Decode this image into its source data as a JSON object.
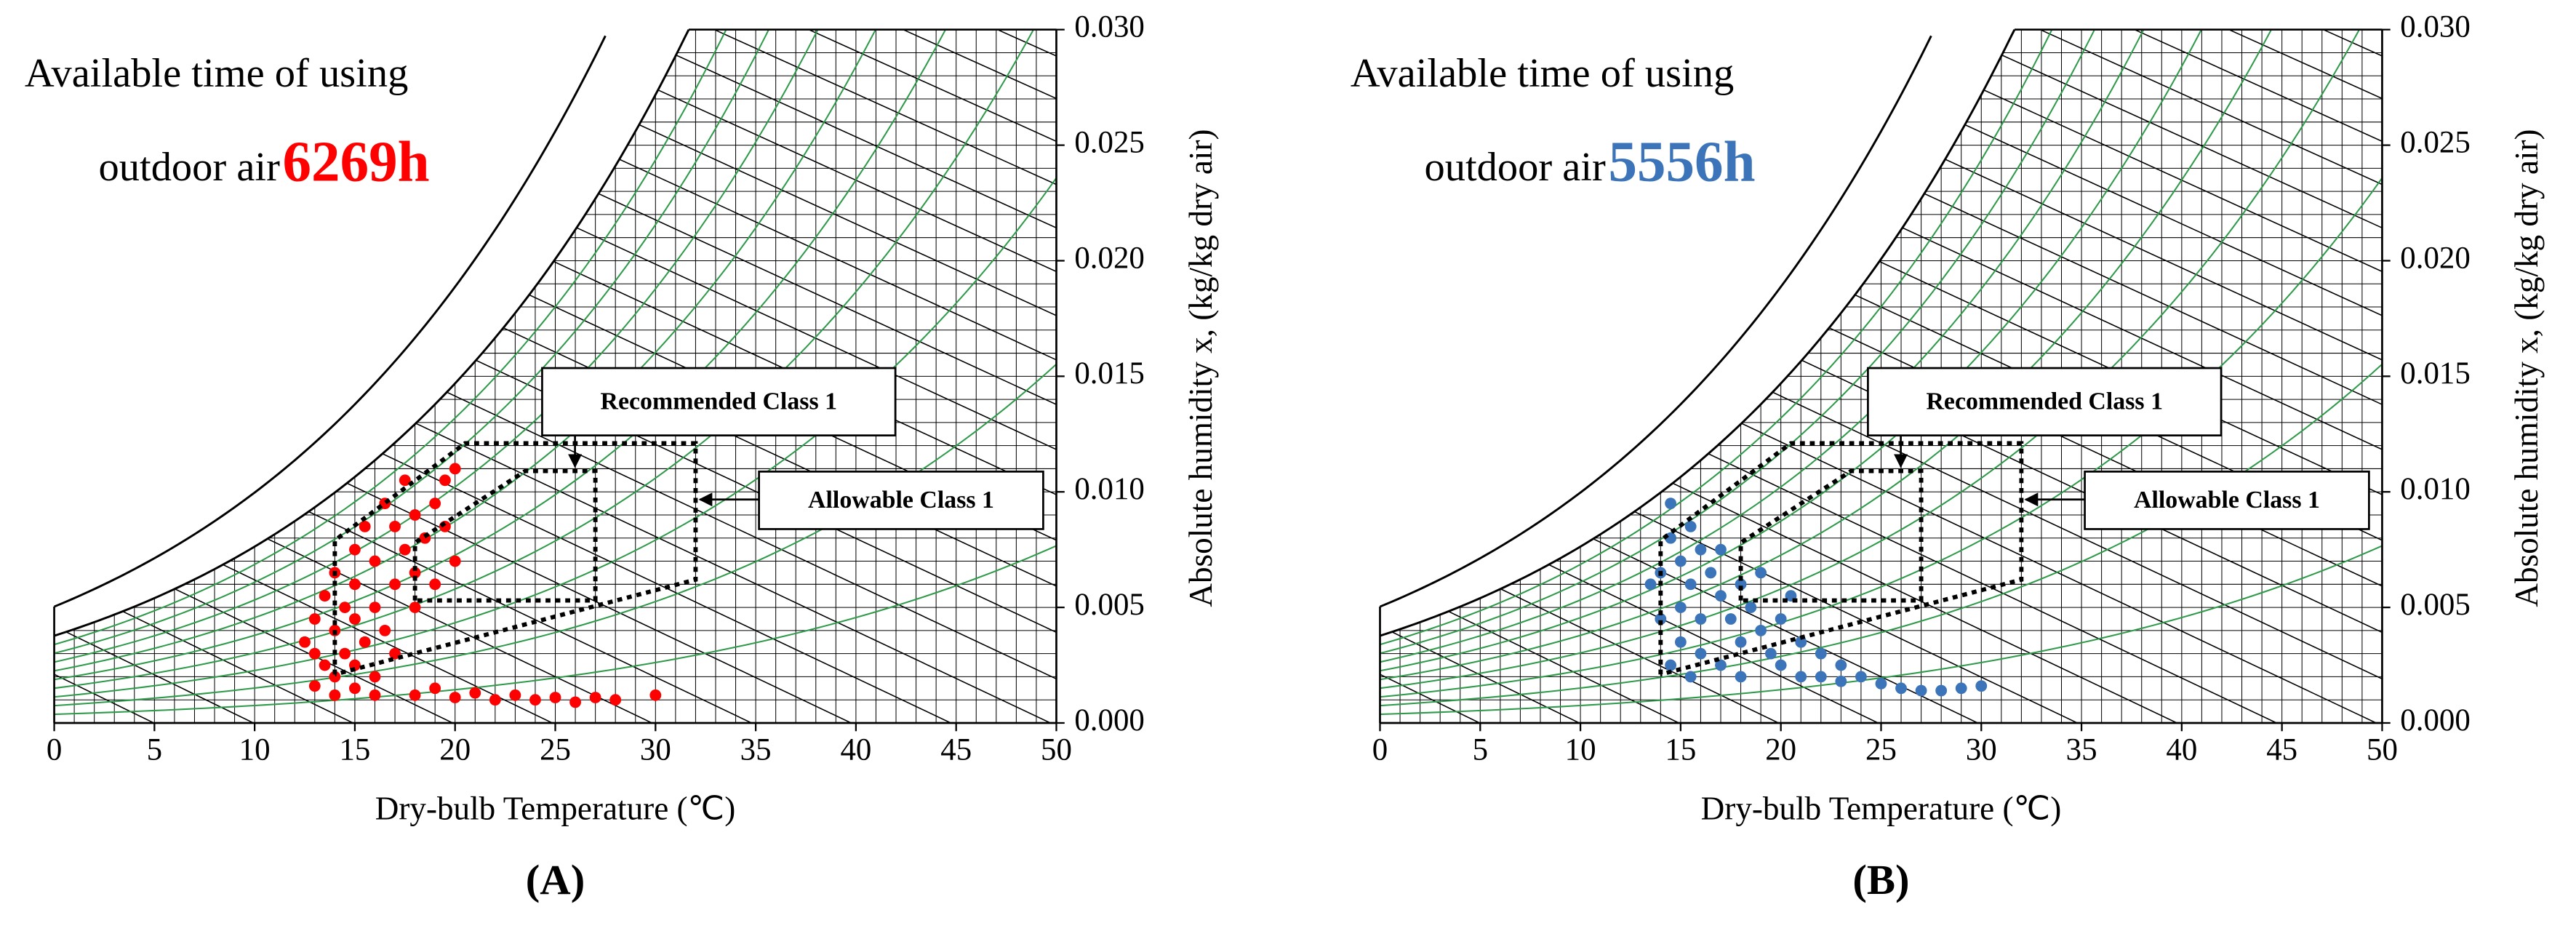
{
  "chart_data": [
    {
      "type": "scatter",
      "panel_label": "(A)",
      "text_lines": [
        "Available time of using",
        "outdoor air"
      ],
      "highlight": "6269h",
      "color": "#ff0000",
      "x_label": "Dry-bulb Temperature (℃)",
      "y_label": "Absolute humidity x, (kg/kg dry air)",
      "xlim": [
        0,
        50
      ],
      "xticks": [
        0,
        5,
        10,
        15,
        20,
        25,
        30,
        35,
        40,
        45,
        50
      ],
      "ylim": [
        0,
        0.03
      ],
      "yticks": [
        {
          "value": 0,
          "label": "0.000"
        },
        {
          "value": 0.005,
          "label": "0.005"
        },
        {
          "value": 0.01,
          "label": "0.010"
        },
        {
          "value": 0.015,
          "label": "0.015"
        },
        {
          "value": 0.02,
          "label": "0.020"
        },
        {
          "value": 0.025,
          "label": "0.025"
        },
        {
          "value": 0.03,
          "label": "0.030"
        }
      ],
      "regions": [
        {
          "label": "Recommended Class 1",
          "x": [
            18,
            18,
            23.5,
            27,
            27,
            18
          ],
          "y": [
            0.0053,
            0.0078,
            0.0109,
            0.0109,
            0.0053,
            0.0053
          ]
        },
        {
          "label": "Allowable Class 1",
          "x": [
            14,
            14,
            20.5,
            32,
            32,
            14
          ],
          "y": [
            0.0021,
            0.0079,
            0.0121,
            0.0121,
            0.0062,
            0.0021
          ]
        }
      ],
      "x": [
        12.5,
        13,
        13,
        13.5,
        13.5,
        14,
        14,
        14,
        14.5,
        14.5,
        15,
        15,
        15,
        15,
        15.5,
        15.5,
        16,
        16,
        16,
        16.5,
        16.5,
        17,
        17,
        17,
        17.5,
        17.5,
        18,
        18,
        18,
        18.5,
        19,
        19,
        19.5,
        19.5,
        20,
        20,
        16,
        18,
        20,
        22,
        24,
        26,
        28,
        30,
        19,
        21,
        23,
        25,
        27,
        15,
        13,
        14
      ],
      "values": [
        0.0035,
        0.003,
        0.0045,
        0.0025,
        0.0055,
        0.002,
        0.004,
        0.0065,
        0.003,
        0.005,
        0.0025,
        0.0045,
        0.006,
        0.0075,
        0.0035,
        0.0085,
        0.002,
        0.005,
        0.007,
        0.0095,
        0.004,
        0.003,
        0.006,
        0.0085,
        0.0075,
        0.0105,
        0.005,
        0.009,
        0.0065,
        0.008,
        0.0095,
        0.006,
        0.0105,
        0.0085,
        0.011,
        0.007,
        0.0012,
        0.0012,
        0.0011,
        0.001,
        0.001,
        0.0009,
        0.001,
        0.0012,
        0.0015,
        0.0013,
        0.0012,
        0.0011,
        0.0011,
        0.0015,
        0.0016,
        0.0012
      ]
    },
    {
      "type": "scatter",
      "panel_label": "(B)",
      "text_lines": [
        "Available time of using",
        "outdoor air"
      ],
      "highlight": "5556h",
      "color": "#3b74b9",
      "x_label": "Dry-bulb Temperature (℃)",
      "y_label": "Absolute humidity x, (kg/kg dry air)",
      "xlim": [
        0,
        50
      ],
      "xticks": [
        0,
        5,
        10,
        15,
        20,
        25,
        30,
        35,
        40,
        45,
        50
      ],
      "ylim": [
        0,
        0.03
      ],
      "yticks": [
        {
          "value": 0,
          "label": "0.000"
        },
        {
          "value": 0.005,
          "label": "0.005"
        },
        {
          "value": 0.01,
          "label": "0.010"
        },
        {
          "value": 0.015,
          "label": "0.015"
        },
        {
          "value": 0.02,
          "label": "0.020"
        },
        {
          "value": 0.025,
          "label": "0.025"
        },
        {
          "value": 0.03,
          "label": "0.030"
        }
      ],
      "regions": [
        {
          "label": "Recommended Class 1",
          "x": [
            18,
            18,
            23.5,
            27,
            27,
            18
          ],
          "y": [
            0.0053,
            0.0078,
            0.0109,
            0.0109,
            0.0053,
            0.0053
          ]
        },
        {
          "label": "Allowable Class 1",
          "x": [
            14,
            14,
            20.5,
            32,
            32,
            14
          ],
          "y": [
            0.0021,
            0.0079,
            0.0121,
            0.0121,
            0.0062,
            0.0021
          ]
        }
      ],
      "x": [
        13.5,
        14,
        14,
        14.5,
        14.5,
        15,
        15,
        15,
        15.5,
        15.5,
        16,
        16,
        16,
        16.5,
        17,
        17,
        17,
        17.5,
        18,
        18,
        18,
        18.5,
        19,
        19,
        19.5,
        20,
        20,
        20.5,
        21,
        21,
        22,
        22,
        23,
        23,
        24,
        25,
        26,
        27,
        28,
        29,
        30,
        14.5,
        15.5
      ],
      "values": [
        0.006,
        0.0065,
        0.0045,
        0.0095,
        0.008,
        0.007,
        0.005,
        0.0035,
        0.006,
        0.0085,
        0.0075,
        0.0045,
        0.003,
        0.0065,
        0.0055,
        0.0075,
        0.0025,
        0.0045,
        0.006,
        0.0035,
        0.002,
        0.005,
        0.004,
        0.0065,
        0.003,
        0.0045,
        0.0025,
        0.0055,
        0.0035,
        0.002,
        0.003,
        0.002,
        0.0025,
        0.0018,
        0.002,
        0.0017,
        0.0015,
        0.0014,
        0.0014,
        0.0015,
        0.0016,
        0.0025,
        0.002
      ]
    }
  ]
}
